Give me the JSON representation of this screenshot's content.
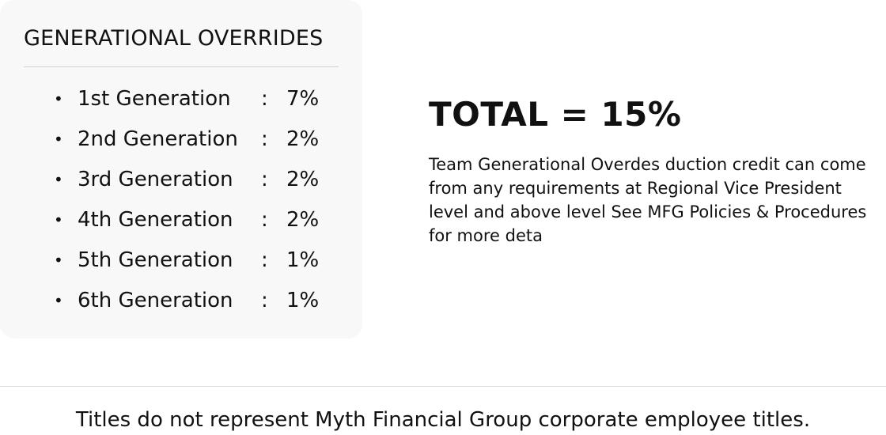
{
  "overrides_card": {
    "title": "GENERATIONAL OVERRIDES",
    "items": [
      {
        "bullet": "•",
        "label": "1st Generation",
        "separator": ":",
        "value": "7%"
      },
      {
        "bullet": "•",
        "label": "2nd Generation",
        "separator": ":",
        "value": "2%"
      },
      {
        "bullet": "•",
        "label": "3rd Generation",
        "separator": ":",
        "value": "2%"
      },
      {
        "bullet": "•",
        "label": "4th Generation",
        "separator": ":",
        "value": "2%"
      },
      {
        "bullet": "•",
        "label": "5th Generation",
        "separator": ":",
        "value": "1%"
      },
      {
        "bullet": "•",
        "label": "6th Generation",
        "separator": ":",
        "value": "1%"
      }
    ]
  },
  "summary": {
    "total": "TOTAL = 15%",
    "description": "Team Generational Overdes duction credit can come from any requirements at Regional Vice President level and above level See MFG Policies & Procedures for more deta"
  },
  "footer": {
    "note": "Titles do not represent Myth Financial Group  corporate employee titles."
  }
}
